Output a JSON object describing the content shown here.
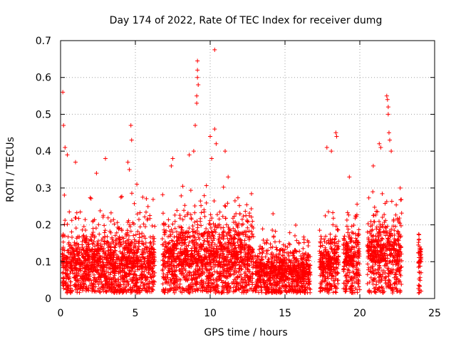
{
  "chart_data": {
    "type": "scatter",
    "title": "Day 174 of 2022, Rate Of TEC Index for receiver dumg",
    "xlabel": "GPS time / hours",
    "ylabel": "ROTI / TECUs",
    "xlim": [
      0,
      25
    ],
    "ylim": [
      0,
      0.7
    ],
    "xticks": [
      "0",
      "5",
      "10",
      "15",
      "20",
      "25"
    ],
    "yticks": [
      "0",
      "0.1",
      "0.2",
      "0.3",
      "0.4",
      "0.5",
      "0.6",
      "0.7"
    ],
    "grid": true,
    "marker": "+",
    "color": "#ff0000",
    "series": [
      {
        "clusters": [
          {
            "x0": 0.1,
            "x1": 6.3,
            "center": 0.08,
            "spread": 0.07,
            "top": 0.3
          },
          {
            "x0": 6.8,
            "x1": 12.9,
            "center": 0.09,
            "spread": 0.08,
            "top": 0.33
          },
          {
            "x0": 13.0,
            "x1": 16.7,
            "center": 0.06,
            "spread": 0.05,
            "top": 0.22
          },
          {
            "x0": 17.3,
            "x1": 18.6,
            "center": 0.08,
            "spread": 0.06,
            "top": 0.25
          },
          {
            "x0": 18.9,
            "x1": 20.0,
            "center": 0.09,
            "spread": 0.07,
            "top": 0.26
          },
          {
            "x0": 20.5,
            "x1": 22.8,
            "center": 0.1,
            "spread": 0.08,
            "top": 0.3
          },
          {
            "x0": 23.9,
            "x1": 24.1,
            "center": 0.08,
            "spread": 0.06,
            "top": 0.23
          }
        ],
        "outliers": [
          {
            "x": 0.15,
            "y": 0.56
          },
          {
            "x": 0.2,
            "y": 0.47
          },
          {
            "x": 0.3,
            "y": 0.41
          },
          {
            "x": 0.45,
            "y": 0.39
          },
          {
            "x": 1.0,
            "y": 0.37
          },
          {
            "x": 2.4,
            "y": 0.34
          },
          {
            "x": 3.0,
            "y": 0.38
          },
          {
            "x": 4.5,
            "y": 0.37
          },
          {
            "x": 4.6,
            "y": 0.35
          },
          {
            "x": 4.7,
            "y": 0.47
          },
          {
            "x": 4.75,
            "y": 0.43
          },
          {
            "x": 5.1,
            "y": 0.31
          },
          {
            "x": 7.4,
            "y": 0.36
          },
          {
            "x": 7.5,
            "y": 0.38
          },
          {
            "x": 8.6,
            "y": 0.39
          },
          {
            "x": 8.9,
            "y": 0.4
          },
          {
            "x": 9.0,
            "y": 0.47
          },
          {
            "x": 9.1,
            "y": 0.53
          },
          {
            "x": 9.1,
            "y": 0.55
          },
          {
            "x": 9.15,
            "y": 0.6
          },
          {
            "x": 9.15,
            "y": 0.62
          },
          {
            "x": 9.15,
            "y": 0.645
          },
          {
            "x": 9.2,
            "y": 0.58
          },
          {
            "x": 10.0,
            "y": 0.44
          },
          {
            "x": 10.1,
            "y": 0.38
          },
          {
            "x": 10.3,
            "y": 0.675
          },
          {
            "x": 10.3,
            "y": 0.46
          },
          {
            "x": 10.4,
            "y": 0.42
          },
          {
            "x": 11.0,
            "y": 0.4
          },
          {
            "x": 11.2,
            "y": 0.33
          },
          {
            "x": 14.2,
            "y": 0.23
          },
          {
            "x": 17.8,
            "y": 0.41
          },
          {
            "x": 18.1,
            "y": 0.4
          },
          {
            "x": 18.4,
            "y": 0.45
          },
          {
            "x": 18.45,
            "y": 0.44
          },
          {
            "x": 19.3,
            "y": 0.33
          },
          {
            "x": 20.9,
            "y": 0.36
          },
          {
            "x": 21.3,
            "y": 0.42
          },
          {
            "x": 21.4,
            "y": 0.41
          },
          {
            "x": 21.8,
            "y": 0.55
          },
          {
            "x": 21.85,
            "y": 0.54
          },
          {
            "x": 21.9,
            "y": 0.52
          },
          {
            "x": 21.9,
            "y": 0.5
          },
          {
            "x": 21.95,
            "y": 0.45
          },
          {
            "x": 22.0,
            "y": 0.43
          },
          {
            "x": 22.1,
            "y": 0.4
          },
          {
            "x": 22.7,
            "y": 0.3
          },
          {
            "x": 24.1,
            "y": 0.1
          },
          {
            "x": 24.1,
            "y": 0.07
          },
          {
            "x": 24.1,
            "y": 0.02
          }
        ]
      }
    ]
  }
}
